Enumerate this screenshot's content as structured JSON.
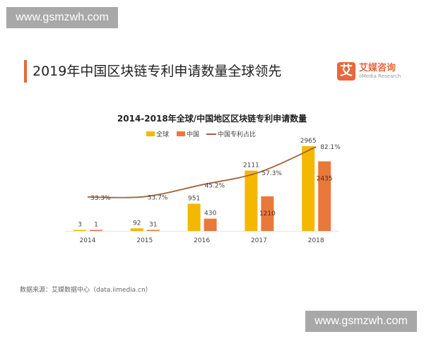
{
  "watermark": "www.gsmzwh.com",
  "header": {
    "title": "2019年中国区块链专利申请数量全球领先"
  },
  "logo": {
    "mark": "艾",
    "name_cn": "艾媒咨询",
    "name_en": "iiMedia Research"
  },
  "colors": {
    "global": "#f5b800",
    "china": "#e8793a",
    "ratio_line": "#a0643a",
    "accent": "#e8673a"
  },
  "chart_data": {
    "type": "bar",
    "title": "2014-2018年全球/中国地区区块链专利申请数量",
    "categories": [
      "2014",
      "2015",
      "2016",
      "2017",
      "2018"
    ],
    "series": [
      {
        "name": "全球",
        "type": "bar",
        "values": [
          3,
          92,
          951,
          2111,
          2965
        ]
      },
      {
        "name": "中国",
        "type": "bar",
        "values": [
          1,
          31,
          430,
          1210,
          2435
        ]
      },
      {
        "name": "中国专利占比",
        "type": "line",
        "values": [
          33.3,
          33.7,
          45.2,
          57.3,
          82.1
        ],
        "labels": [
          "33.3%",
          "33.7%",
          "45.2%",
          "57.3%",
          "82.1%"
        ]
      }
    ],
    "legend": "top",
    "grid": false
  },
  "source": "数据来源：艾媒数据中心（data.iimedia.cn）"
}
